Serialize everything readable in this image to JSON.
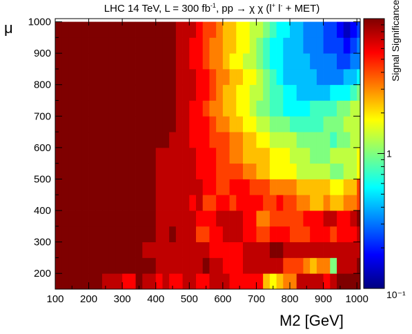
{
  "chart_data": {
    "type": "heatmap",
    "title": "LHC 14 TeV, L = 300 fb",
    "title_sup1": "-1",
    "title_mid": ", pp → χ χ (l",
    "title_sup2": "+",
    "title_mid2": " l",
    "title_sup3": "-",
    "title_end": " + MET)",
    "xlabel": "M2 [GeV]",
    "ylabel": "μ",
    "zlabel": "Signal Significance",
    "xlim": [
      100,
      1010
    ],
    "ylim": [
      150,
      1010
    ],
    "x_ticks": [
      "100",
      "200",
      "300",
      "400",
      "500",
      "600",
      "700",
      "800",
      "900",
      "1000"
    ],
    "y_ticks": [
      "200",
      "300",
      "400",
      "500",
      "600",
      "700",
      "800",
      "900",
      "1000"
    ],
    "z_ticks": [
      "10⁻¹",
      "1"
    ],
    "z_scale": "log",
    "z_range": [
      0.1,
      10
    ],
    "x_bin_width": 20,
    "x_bin_start": 100,
    "y_bin_width": 50,
    "y_bin_start": 175,
    "colormap": [
      "#00007f",
      "#0000ff",
      "#007fff",
      "#00ffff",
      "#7fff7f",
      "#ffff00",
      "#ff7f00",
      "#ff0000",
      "#7f0000"
    ],
    "rows_y": [
      175,
      225,
      275,
      325,
      375,
      425,
      475,
      525,
      575,
      625,
      675,
      725,
      775,
      825,
      875,
      925,
      975
    ],
    "z_level_rows": [
      [
        16,
        16,
        16,
        16,
        16,
        16,
        16,
        15,
        15,
        15,
        14,
        14,
        16,
        15,
        15,
        14,
        15,
        14,
        14,
        15,
        15,
        14,
        14,
        15,
        15,
        15,
        14,
        14,
        14,
        14,
        14,
        11,
        10,
        11,
        12,
        12,
        15,
        15,
        15,
        15,
        14,
        15,
        16,
        16,
        16,
        16
      ],
      [
        16,
        16,
        16,
        16,
        16,
        16,
        16,
        16,
        16,
        16,
        16,
        16,
        16,
        16,
        16,
        15,
        15,
        15,
        15,
        15,
        15,
        15,
        16,
        15,
        15,
        14,
        14,
        14,
        15,
        15,
        15,
        15,
        15,
        15,
        13,
        13,
        13,
        12,
        11,
        12,
        12,
        8,
        15,
        15,
        15,
        16
      ],
      [
        16,
        16,
        16,
        16,
        16,
        16,
        16,
        16,
        16,
        16,
        16,
        16,
        16,
        15,
        15,
        15,
        15,
        15,
        15,
        15,
        15,
        15,
        15,
        14,
        14,
        14,
        14,
        14,
        15,
        15,
        15,
        15,
        16,
        16,
        15,
        15,
        15,
        15,
        15,
        15,
        15,
        15,
        15,
        15,
        15,
        15
      ],
      [
        16,
        16,
        16,
        16,
        16,
        16,
        16,
        16,
        16,
        16,
        16,
        16,
        16,
        16,
        16,
        15,
        15,
        16,
        15,
        15,
        15,
        13,
        13,
        14,
        14,
        15,
        15,
        15,
        14,
        14,
        13,
        13,
        14,
        14,
        14,
        13,
        13,
        13,
        14,
        14,
        14,
        13,
        14,
        14,
        14,
        15
      ],
      [
        16,
        16,
        16,
        16,
        16,
        16,
        16,
        16,
        16,
        16,
        16,
        16,
        16,
        16,
        16,
        15,
        15,
        15,
        15,
        15,
        15,
        14,
        14,
        14,
        15,
        15,
        15,
        15,
        14,
        14,
        12,
        12,
        13,
        13,
        13,
        13,
        13,
        14,
        14,
        14,
        15,
        15,
        14,
        14,
        15,
        16
      ],
      [
        16,
        16,
        16,
        16,
        16,
        16,
        16,
        16,
        16,
        16,
        16,
        16,
        16,
        16,
        16,
        15,
        15,
        15,
        15,
        15,
        14,
        15,
        13,
        13,
        14,
        14,
        13,
        14,
        14,
        14,
        14,
        13,
        13,
        14,
        13,
        13,
        12,
        12,
        11,
        11,
        12,
        11,
        11,
        12,
        12,
        13
      ],
      [
        16,
        16,
        16,
        16,
        16,
        16,
        16,
        16,
        16,
        16,
        16,
        16,
        16,
        16,
        16,
        15,
        15,
        15,
        15,
        15,
        15,
        15,
        14,
        14,
        13,
        13,
        14,
        14,
        14,
        13,
        13,
        13,
        12,
        12,
        12,
        12,
        11,
        11,
        11,
        11,
        11,
        10,
        10,
        11,
        11,
        13
      ],
      [
        16,
        16,
        16,
        16,
        16,
        16,
        16,
        16,
        16,
        16,
        16,
        16,
        16,
        16,
        16,
        15,
        15,
        15,
        15,
        15,
        15,
        14,
        14,
        14,
        13,
        13,
        13,
        13,
        12,
        12,
        11,
        11,
        10,
        10,
        10,
        10,
        9,
        9,
        9,
        9,
        9,
        8,
        8,
        9,
        9,
        10
      ],
      [
        16,
        16,
        16,
        16,
        16,
        16,
        16,
        16,
        16,
        16,
        16,
        16,
        16,
        16,
        16,
        15,
        15,
        15,
        15,
        15,
        15,
        14,
        14,
        14,
        13,
        13,
        12,
        12,
        11,
        11,
        11,
        11,
        10,
        10,
        10,
        9,
        9,
        9,
        8,
        8,
        8,
        9,
        9,
        9,
        9,
        10
      ],
      [
        16,
        16,
        16,
        16,
        16,
        16,
        16,
        16,
        16,
        16,
        16,
        16,
        16,
        16,
        16,
        16,
        16,
        15,
        15,
        15,
        14,
        14,
        14,
        13,
        13,
        13,
        12,
        12,
        11,
        11,
        10,
        10,
        9,
        9,
        9,
        9,
        8,
        8,
        8,
        8,
        8,
        7,
        8,
        8,
        9,
        9
      ],
      [
        16,
        16,
        16,
        16,
        16,
        16,
        16,
        16,
        16,
        16,
        16,
        16,
        16,
        16,
        16,
        16,
        16,
        16,
        15,
        15,
        14,
        14,
        14,
        13,
        12,
        12,
        11,
        11,
        10,
        10,
        9,
        9,
        8,
        8,
        8,
        7,
        7,
        7,
        7,
        7,
        8,
        8,
        8,
        9,
        9,
        9
      ],
      [
        16,
        16,
        16,
        16,
        16,
        16,
        16,
        16,
        16,
        16,
        16,
        16,
        16,
        16,
        16,
        16,
        16,
        16,
        15,
        15,
        14,
        14,
        13,
        12,
        12,
        11,
        11,
        10,
        10,
        9,
        8,
        8,
        7,
        7,
        6,
        6,
        6,
        6,
        7,
        7,
        7,
        7,
        8,
        8,
        9,
        9
      ],
      [
        16,
        16,
        16,
        16,
        16,
        16,
        16,
        16,
        16,
        16,
        16,
        16,
        16,
        16,
        16,
        16,
        16,
        16,
        15,
        15,
        15,
        14,
        14,
        13,
        12,
        11,
        11,
        10,
        10,
        9,
        9,
        8,
        7,
        7,
        6,
        6,
        5,
        5,
        5,
        5,
        5,
        6,
        6,
        6,
        7,
        8
      ],
      [
        16,
        16,
        16,
        16,
        16,
        16,
        16,
        16,
        16,
        16,
        16,
        16,
        16,
        16,
        16,
        16,
        16,
        16,
        15,
        15,
        15,
        14,
        14,
        13,
        12,
        12,
        11,
        11,
        10,
        10,
        9,
        8,
        7,
        6,
        5,
        5,
        5,
        5,
        5,
        4,
        4,
        4,
        4,
        5,
        5,
        6
      ],
      [
        16,
        16,
        16,
        16,
        16,
        16,
        16,
        16,
        16,
        16,
        16,
        16,
        16,
        16,
        16,
        16,
        16,
        16,
        15,
        15,
        14,
        14,
        13,
        12,
        12,
        11,
        10,
        10,
        9,
        9,
        8,
        7,
        6,
        6,
        5,
        5,
        5,
        5,
        4,
        4,
        4,
        4,
        3,
        3,
        4,
        4
      ],
      [
        16,
        16,
        16,
        16,
        16,
        16,
        16,
        16,
        16,
        16,
        16,
        16,
        16,
        16,
        16,
        16,
        16,
        16,
        15,
        15,
        14,
        14,
        13,
        12,
        12,
        11,
        11,
        10,
        10,
        9,
        8,
        7,
        6,
        6,
        5,
        5,
        5,
        4,
        4,
        4,
        3,
        3,
        3,
        2,
        3,
        4
      ],
      [
        16,
        16,
        16,
        16,
        16,
        16,
        16,
        16,
        16,
        16,
        16,
        16,
        16,
        16,
        16,
        16,
        16,
        16,
        15,
        15,
        15,
        14,
        13,
        13,
        12,
        11,
        11,
        10,
        10,
        9,
        9,
        8,
        7,
        6,
        6,
        5,
        5,
        4,
        4,
        4,
        3,
        3,
        2,
        1,
        2,
        3
      ]
    ]
  }
}
